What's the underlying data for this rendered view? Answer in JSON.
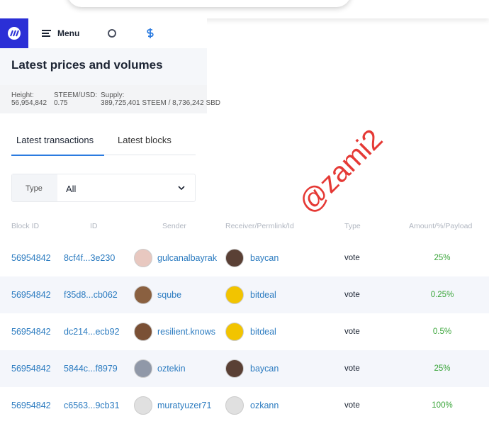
{
  "nav": {
    "menu": "Menu"
  },
  "heading": "Latest prices and volumes",
  "stats": [
    {
      "label": "Height:",
      "value": "56,954,842"
    },
    {
      "label": "STEEM/USD:",
      "value": "0.75"
    },
    {
      "label": "Supply:",
      "value": "389,725,401 STEEM / 8,736,242 SBD"
    }
  ],
  "tabs": [
    "Latest transactions",
    "Latest blocks"
  ],
  "filter": {
    "label": "Type",
    "value": "All"
  },
  "watermark": "@zami2",
  "table": {
    "headers": [
      "Block ID",
      "ID",
      "Sender",
      "Receiver/Permlink/Id",
      "Type",
      "Amount/%/Payload"
    ],
    "rows": [
      [
        "56954842",
        "8cf4f...3e230",
        "gulcanalbayrak",
        "baycan",
        "vote",
        "25%"
      ],
      [
        "56954842",
        "f35d8...cb062",
        "sqube",
        "bitdeal",
        "vote",
        "0.25%"
      ],
      [
        "56954842",
        "dc214...ecb92",
        "resilient.knows",
        "bitdeal",
        "vote",
        "0.5%"
      ],
      [
        "56954842",
        "5844c...f8979",
        "oztekin",
        "baycan",
        "vote",
        "25%"
      ],
      [
        "56954842",
        "c6563...9cb31",
        "muratyuzer71",
        "ozkann",
        "vote",
        "100%"
      ]
    ]
  }
}
